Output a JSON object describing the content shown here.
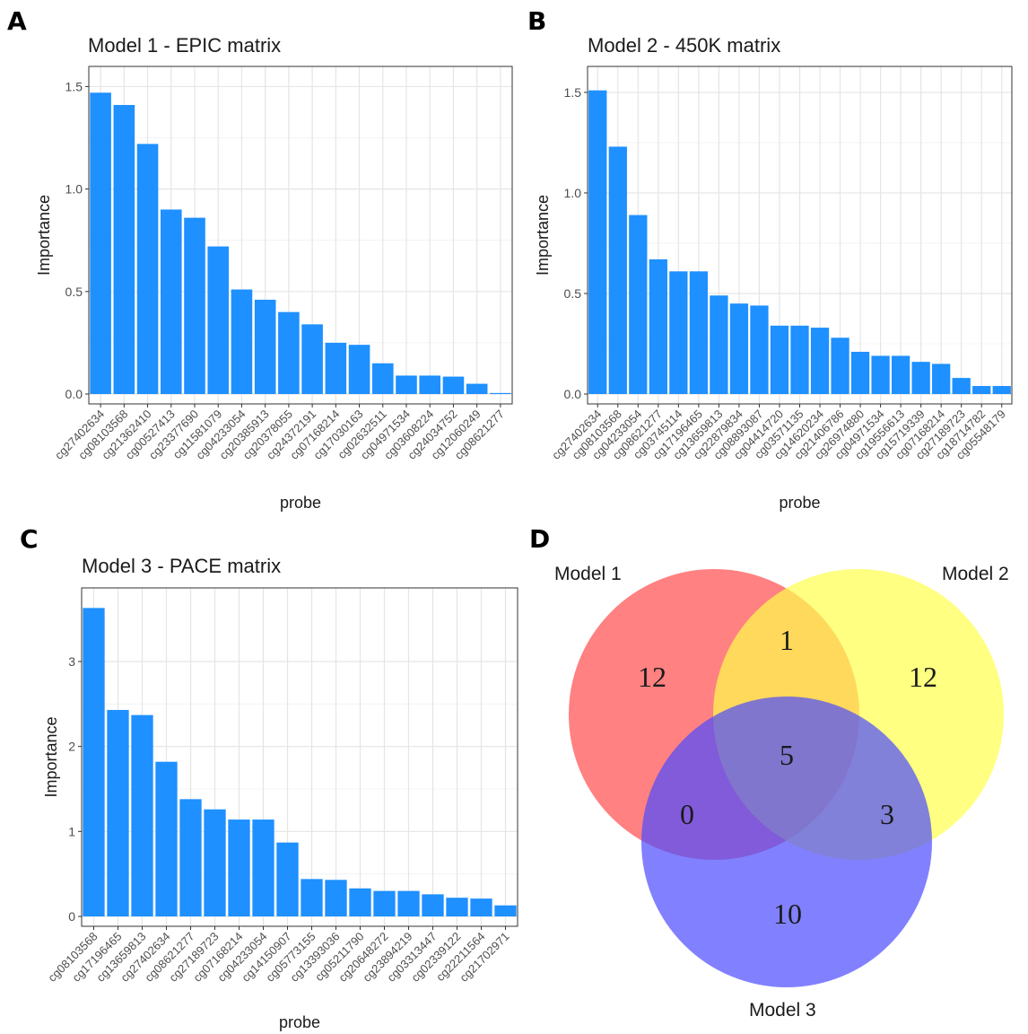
{
  "panels": {
    "a": {
      "letter": "A"
    },
    "b": {
      "letter": "B"
    },
    "c": {
      "letter": "C"
    },
    "d": {
      "letter": "D"
    }
  },
  "chart_data": [
    {
      "type": "bar",
      "title": "Model 1 - EPIC matrix",
      "xlabel": "probe",
      "ylabel": "Importance",
      "ylim": [
        0,
        1.55
      ],
      "yticks": [
        0.0,
        0.5,
        1.0,
        1.5
      ],
      "ytick_labels": [
        "0.0",
        "0.5",
        "1.0",
        "1.5"
      ],
      "grid": true,
      "bar_color": "#1e90ff",
      "categories": [
        "cg27402634",
        "cg08103568",
        "cg21362410",
        "cg00527413",
        "cg23377690",
        "cg11581079",
        "cg04233054",
        "cg20385913",
        "cg20378055",
        "cg24372191",
        "cg07168214",
        "cg17030163",
        "cg02632511",
        "cg04971534",
        "cg03608224",
        "cg24034752",
        "cg12060249",
        "cg08621277"
      ],
      "values": [
        1.47,
        1.41,
        1.22,
        0.9,
        0.86,
        0.72,
        0.51,
        0.46,
        0.4,
        0.34,
        0.25,
        0.24,
        0.15,
        0.09,
        0.09,
        0.085,
        0.05,
        0.005
      ]
    },
    {
      "type": "bar",
      "title": "Model 2 - 450K matrix",
      "xlabel": "probe",
      "ylabel": "Importance",
      "ylim": [
        0,
        1.58
      ],
      "yticks": [
        0.0,
        0.5,
        1.0,
        1.5
      ],
      "ytick_labels": [
        "0.0",
        "0.5",
        "1.0",
        "1.5"
      ],
      "grid": true,
      "bar_color": "#1e90ff",
      "categories": [
        "cg27402634",
        "cg08103568",
        "cg04233054",
        "cg08621277",
        "cg03745114",
        "cg17196465",
        "cg13659813",
        "cg22879834",
        "cg08893087",
        "cg04414720",
        "cg03571135",
        "cg14620234",
        "cg21406786",
        "cg26974880",
        "cg04971534",
        "cg19556613",
        "cg15719339",
        "cg07168214",
        "cg27189723",
        "cg18714782",
        "cg05548179"
      ],
      "values": [
        1.51,
        1.23,
        0.89,
        0.67,
        0.61,
        0.61,
        0.49,
        0.45,
        0.44,
        0.34,
        0.34,
        0.33,
        0.28,
        0.21,
        0.19,
        0.19,
        0.16,
        0.15,
        0.08,
        0.04,
        0.04
      ]
    },
    {
      "type": "bar",
      "title": "Model 3 - PACE matrix",
      "xlabel": "probe",
      "ylabel": "Importance",
      "ylim": [
        0,
        3.75
      ],
      "yticks": [
        0,
        1,
        2,
        3
      ],
      "ytick_labels": [
        "0",
        "1",
        "2",
        "3"
      ],
      "grid": true,
      "bar_color": "#1e90ff",
      "categories": [
        "cg08103568",
        "cg17196465",
        "cg13659813",
        "cg27402634",
        "cg08621277",
        "cg27189723",
        "cg07168214",
        "cg04233054",
        "cg14150907",
        "cg05773155",
        "cg13393036",
        "cg05211790",
        "cg20648272",
        "cg23894219",
        "cg03313447",
        "cg02339122",
        "cg22211564",
        "cg21702971"
      ],
      "values": [
        3.63,
        2.43,
        2.37,
        1.82,
        1.38,
        1.26,
        1.14,
        1.14,
        0.87,
        0.44,
        0.43,
        0.33,
        0.3,
        0.3,
        0.26,
        0.22,
        0.21,
        0.13
      ]
    },
    {
      "type": "venn",
      "sets": [
        {
          "name": "Model 1",
          "color": "#ff4c4c"
        },
        {
          "name": "Model 2",
          "color": "#ffff4c"
        },
        {
          "name": "Model 3",
          "color": "#4c4cff"
        }
      ],
      "regions": {
        "only_1": 12,
        "only_2": 12,
        "only_3": 10,
        "1_and_2": 1,
        "1_and_3": 0,
        "2_and_3": 3,
        "all_three": 5
      }
    }
  ]
}
